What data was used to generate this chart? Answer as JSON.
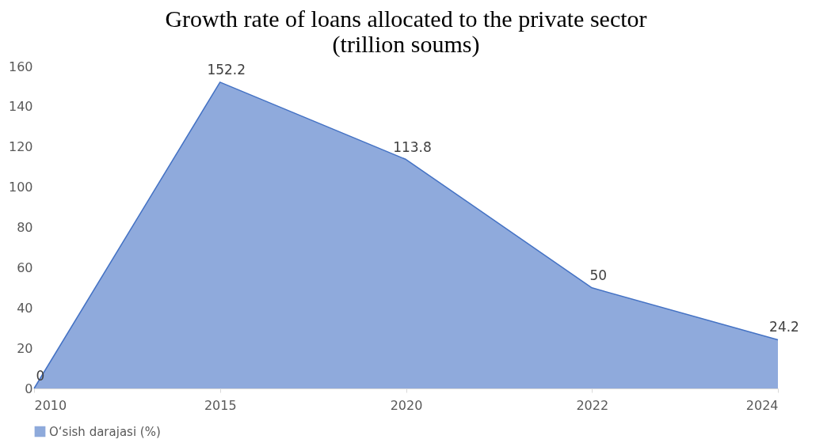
{
  "chart_data": {
    "type": "area",
    "title": "Growth rate of loans allocated to the private sector\n(trillion soums)",
    "categories": [
      "2010",
      "2015",
      "2020",
      "2022",
      "2024"
    ],
    "series": [
      {
        "name": "O‘sish darajasi (%)",
        "color": "#4472c4",
        "values": [
          0,
          152.2,
          113.8,
          50,
          24.2
        ]
      }
    ],
    "ylim": [
      0,
      160
    ],
    "yticks": [
      0,
      20,
      40,
      60,
      80,
      100,
      120,
      140,
      160
    ],
    "data_labels": true,
    "legend": "bottom",
    "grid": false
  }
}
